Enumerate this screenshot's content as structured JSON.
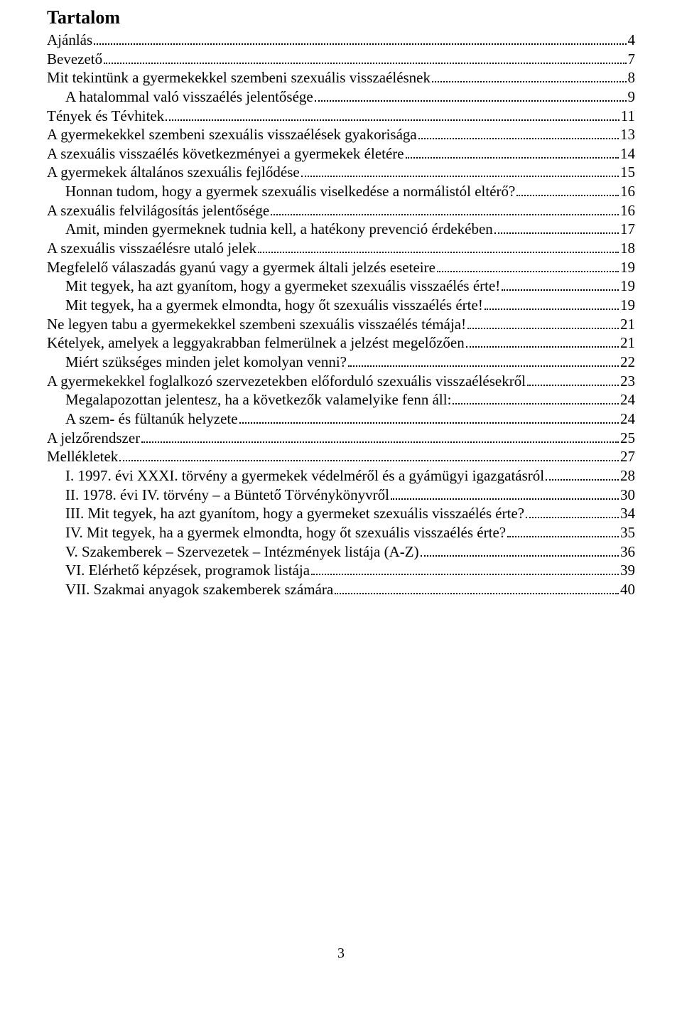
{
  "heading": "Tartalom",
  "page_number": "3",
  "entries": [
    {
      "indent": 0,
      "text": "Ajánlás",
      "page": "4"
    },
    {
      "indent": 0,
      "text": "Bevezető",
      "page": "7"
    },
    {
      "indent": 0,
      "text": "Mit tekintünk a gyermekekkel szembeni szexuális visszaélésnek",
      "page": "8"
    },
    {
      "indent": 1,
      "text": "A hatalommal való visszaélés jelentősége",
      "page": "9"
    },
    {
      "indent": 0,
      "text": "Tények és Tévhitek",
      "page": "11"
    },
    {
      "indent": 0,
      "text": "A gyermekekkel szembeni szexuális visszaélések gyakorisága",
      "page": "13"
    },
    {
      "indent": 0,
      "text": "A szexuális visszaélés következményei a gyermekek életére",
      "page": "14"
    },
    {
      "indent": 0,
      "text": "A gyermekek általános szexuális fejlődése",
      "page": "15"
    },
    {
      "indent": 1,
      "text": "Honnan tudom, hogy a gyermek szexuális viselkedése a normálistól eltérő?",
      "page": "16"
    },
    {
      "indent": 0,
      "text": "A szexuális felvilágosítás jelentősége",
      "page": "16"
    },
    {
      "indent": 1,
      "text": "Amit, minden gyermeknek tudnia kell, a hatékony prevenció érdekében",
      "page": "17"
    },
    {
      "indent": 0,
      "text": "A szexuális visszaélésre utaló jelek",
      "page": "18"
    },
    {
      "indent": 0,
      "text": "Megfelelő válaszadás gyanú vagy a gyermek általi jelzés eseteire",
      "page": "19"
    },
    {
      "indent": 1,
      "text": "Mit tegyek, ha azt gyanítom, hogy a gyermeket szexuális visszaélés érte!",
      "page": "19"
    },
    {
      "indent": 1,
      "text": "Mit tegyek, ha a gyermek elmondta, hogy őt szexuális visszaélés érte!",
      "page": "19"
    },
    {
      "indent": 0,
      "text": "Ne legyen tabu a gyermekekkel szembeni szexuális visszaélés témája!",
      "page": "21"
    },
    {
      "indent": 0,
      "text": "Kételyek, amelyek a leggyakrabban felmerülnek a jelzést megelőzően",
      "page": "21"
    },
    {
      "indent": 1,
      "text": "Miért szükséges minden jelet komolyan venni?",
      "page": "22"
    },
    {
      "indent": 0,
      "text": "A gyermekekkel foglalkozó szervezetekben előforduló szexuális visszaélésekről",
      "page": "23"
    },
    {
      "indent": 1,
      "text": "Megalapozottan jelentesz, ha a következők valamelyike fenn áll:",
      "page": "24"
    },
    {
      "indent": 1,
      "text": "A szem- és fültanúk helyzete",
      "page": "24"
    },
    {
      "indent": 0,
      "text": "A jelzőrendszer",
      "page": "25"
    },
    {
      "indent": 0,
      "text": "Mellékletek",
      "page": "27"
    },
    {
      "indent": 1,
      "text": "I. 1997. évi XXXI. törvény a gyermekek védelméről és a gyámügyi igazgatásról",
      "page": "28"
    },
    {
      "indent": 1,
      "text": "II. 1978. évi IV. törvény – a Büntető Törvénykönyvről",
      "page": "30"
    },
    {
      "indent": 1,
      "text": "III. Mit tegyek, ha azt gyanítom, hogy a gyermeket szexuális visszaélés érte?",
      "page": "34"
    },
    {
      "indent": 1,
      "text": "IV. Mit tegyek, ha a gyermek elmondta, hogy őt szexuális visszaélés érte?",
      "page": "35"
    },
    {
      "indent": 1,
      "text": "V. Szakemberek – Szervezetek – Intézmények listája (A-Z)",
      "page": "36"
    },
    {
      "indent": 1,
      "text": "VI. Elérhető képzések, programok listája",
      "page": "39"
    },
    {
      "indent": 1,
      "text": "VII. Szakmai anyagok szakemberek számára",
      "page": "40"
    }
  ]
}
